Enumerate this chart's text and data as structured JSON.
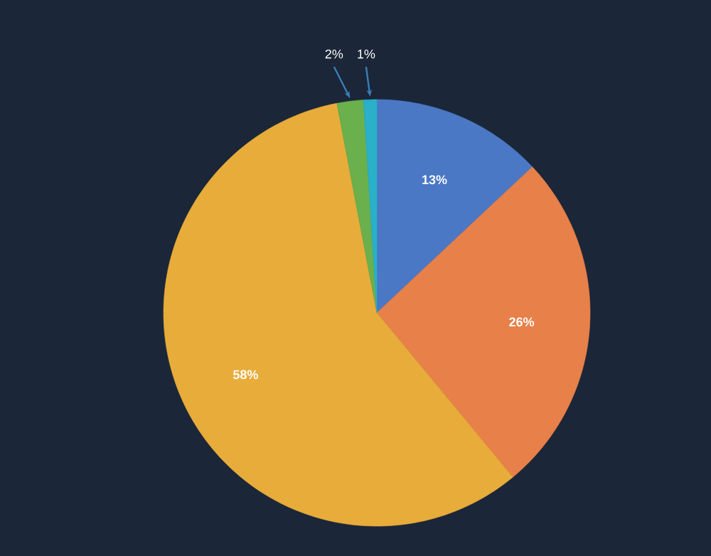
{
  "chart_data": {
    "type": "pie",
    "categories": [
      null,
      null,
      null,
      null,
      null
    ],
    "values": [
      13,
      26,
      58,
      2,
      1
    ],
    "colors": [
      "#4a78c4",
      "#e8804a",
      "#e8ac3a",
      "#6ab04c",
      "#2ab0c8"
    ],
    "value_labels": [
      "13%",
      "26%",
      "58%",
      "2%",
      "1%"
    ]
  }
}
